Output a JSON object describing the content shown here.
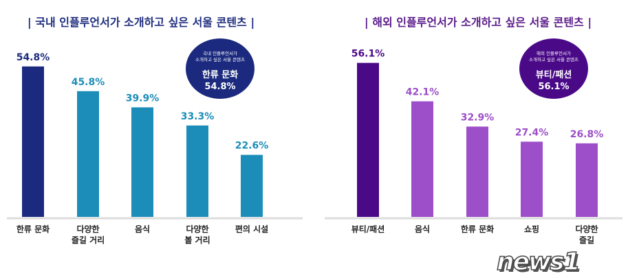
{
  "chart_data": [
    {
      "type": "bar",
      "title": "| 국내 인플루언서가 소개하고 싶은 서울 콘텐츠 |",
      "categories": [
        "한류 문화",
        "다양한\n즐길 거리",
        "음식",
        "다양한\n볼 거리",
        "편의 시설"
      ],
      "values": [
        54.8,
        45.8,
        39.9,
        33.3,
        22.6
      ],
      "value_labels": [
        "54.8%",
        "45.8%",
        "39.9%",
        "33.3%",
        "22.6%"
      ],
      "colors": [
        "#1b2a7e",
        "#1c8db8",
        "#1c8db8",
        "#1c8db8",
        "#1c8db8"
      ],
      "title_color": "#1e2d7d",
      "callout": {
        "subtitle": "국내 인플루언서가\n소개하고 싶은 서울 콘텐츠",
        "label": "한류 문화",
        "value": "54.8%",
        "color": "#1b2a7e"
      },
      "ylim": [
        0,
        60
      ],
      "grid": false
    },
    {
      "type": "bar",
      "title": "| 해외 인플루언서가 소개하고 싶은 서울 콘텐츠 |",
      "categories": [
        "뷰티/패션",
        "음식",
        "한류 문화",
        "쇼핑",
        "다양한\n즐길"
      ],
      "values": [
        56.1,
        42.1,
        32.9,
        27.4,
        26.8
      ],
      "value_labels": [
        "56.1%",
        "42.1%",
        "32.9%",
        "27.4%",
        "26.8%"
      ],
      "colors": [
        "#4a0a88",
        "#9c4fc8",
        "#9c4fc8",
        "#9c4fc8",
        "#9c4fc8"
      ],
      "title_color": "#5a1a8a",
      "callout": {
        "subtitle": "해외 인플루언서가\n소개하고 싶은 서울 콘텐츠",
        "label": "뷰티/패션",
        "value": "56.1%",
        "color": "#4a0a88"
      },
      "ylim": [
        0,
        60
      ],
      "grid": false
    }
  ],
  "watermark": "news1"
}
